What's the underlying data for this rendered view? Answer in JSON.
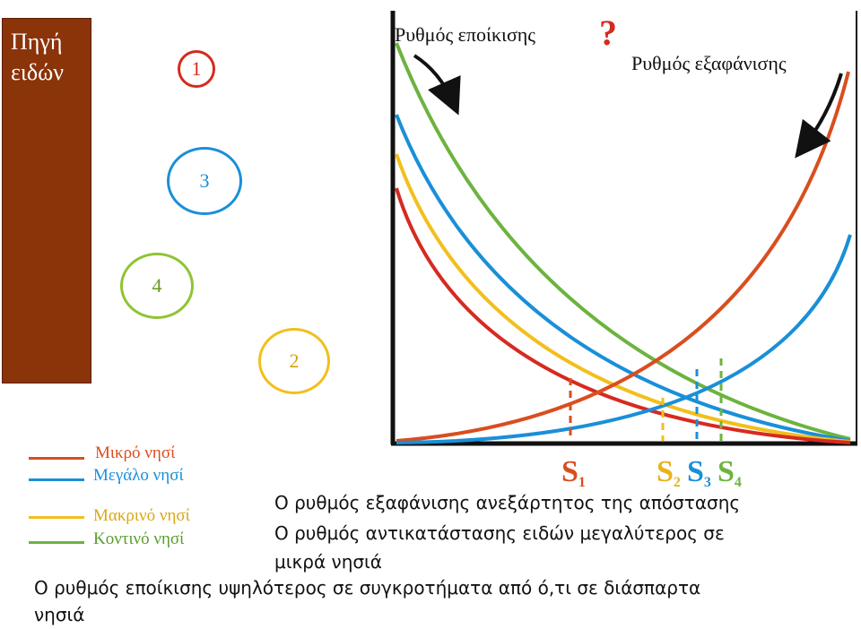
{
  "source": {
    "label_line1": "Πηγή",
    "label_line2": "ειδών",
    "color": "#8b3309"
  },
  "islands": [
    {
      "number": "1",
      "color": "#d62a20"
    },
    {
      "number": "3",
      "color": "#1a8fd8"
    },
    {
      "number": "4",
      "color": "#8fc432"
    },
    {
      "number": "2",
      "color": "#f2bf1c"
    }
  ],
  "chart": {
    "immigration_label": "Ρυθμός εποίκισης",
    "question_mark": "?",
    "extinction_label": "Ρυθμός εξαφάνισης",
    "equilibria": [
      {
        "letter": "S",
        "sub": "1",
        "color": "#d94e1f"
      },
      {
        "letter": "S",
        "sub": "2",
        "color": "#e8b21a"
      },
      {
        "letter": "S",
        "sub": "3",
        "color": "#1a8fd8"
      },
      {
        "letter": "S",
        "sub": "4",
        "color": "#6db33f"
      }
    ]
  },
  "legend": [
    {
      "label": "Μικρό νησί",
      "color": "#d94e1f"
    },
    {
      "label": "Μεγάλο νησί",
      "color": "#1a8fd8"
    },
    {
      "label": "Μακρινό νησί",
      "color": "#f2bf1c"
    },
    {
      "label": "Κοντινό νησί",
      "color": "#6db33f"
    }
  ],
  "notes": {
    "line1": "Ο ρυθμός εξαφάνισης ανεξάρτητος της απόστασης",
    "line2": "Ο ρυθμός αντικατάστασης ειδών μεγαλύτερος σε",
    "line3": "μικρά νησιά",
    "line4": "Ο ρυθμός εποίκισης υψηλότερος σε συγκροτήματα από ό,τι σε διάσπαρτα",
    "line5": "νησιά"
  }
}
